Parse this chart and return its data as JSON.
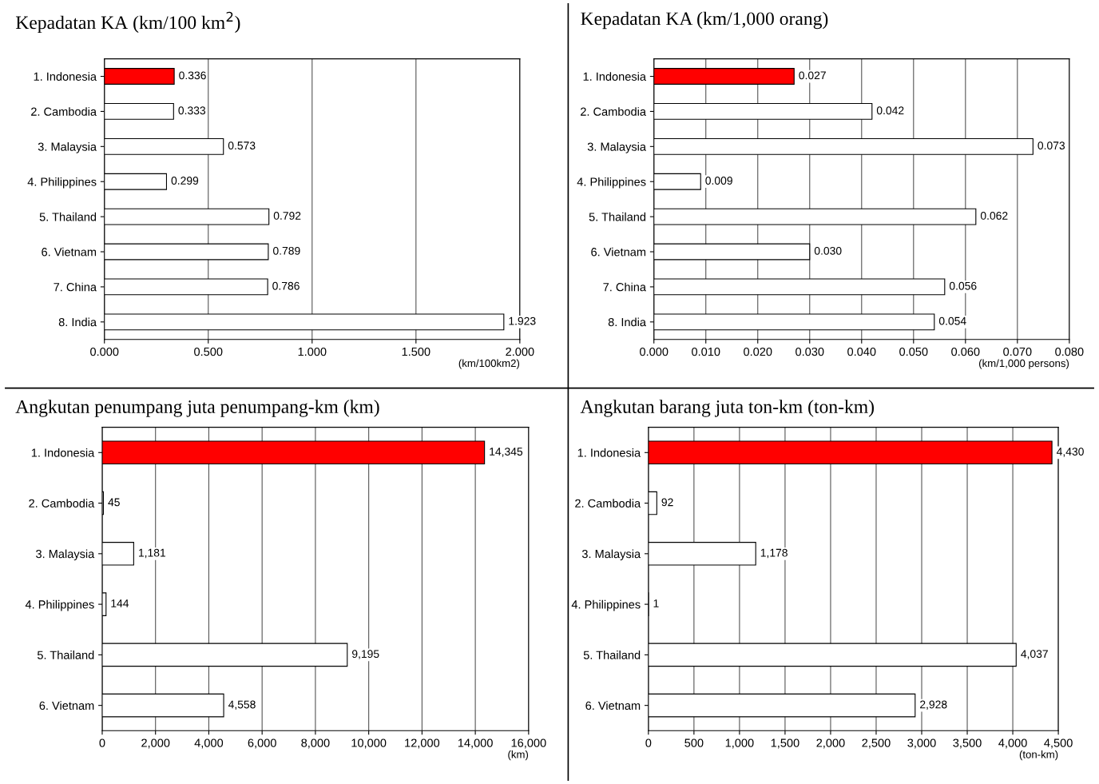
{
  "chart_data": [
    {
      "type": "bar",
      "orientation": "horizontal",
      "title": "Kepadatan KA (km/100 km$^{2}$)",
      "xlabel": "(km/100km2)",
      "categories": [
        "1. Indonesia",
        "2. Cambodia",
        "3. Malaysia",
        "4. Philippines",
        "5. Thailand",
        "6. Vietnam",
        "7. China",
        "8. India"
      ],
      "values": [
        0.336,
        0.333,
        0.573,
        0.299,
        0.792,
        0.789,
        0.786,
        1.923
      ],
      "value_labels": [
        "0.336",
        "0.333",
        "0.573",
        "0.299",
        "0.792",
        "0.789",
        "0.786",
        "1.923"
      ],
      "colors": [
        "#ff0000",
        "#ffffff",
        "#ffffff",
        "#ffffff",
        "#ffffff",
        "#ffffff",
        "#ffffff",
        "#ffffff"
      ],
      "xlim": [
        0,
        2
      ],
      "xticks": [
        {
          "value": 0,
          "label": "0.000"
        },
        {
          "value": 0.5,
          "label": "0.500"
        },
        {
          "value": 1,
          "label": "1.000"
        },
        {
          "value": 1.5,
          "label": "1.500"
        },
        {
          "value": 2,
          "label": "2.000"
        }
      ],
      "grid": "x"
    },
    {
      "type": "bar",
      "orientation": "horizontal",
      "title": "Kepadatan KA (km/1,000 orang)",
      "xlabel": "(km/1,000 persons)",
      "categories": [
        "1. Indonesia",
        "2. Cambodia",
        "3. Malaysia",
        "4. Philippines",
        "5. Thailand",
        "6. Vietnam",
        "7. China",
        "8. India"
      ],
      "values": [
        0.027,
        0.042,
        0.073,
        0.009,
        0.062,
        0.03,
        0.056,
        0.054
      ],
      "value_labels": [
        "0.027",
        "0.042",
        "0.073",
        "0.009",
        "0.062",
        "0.030",
        "0.056",
        "0.054"
      ],
      "colors": [
        "#ff0000",
        "#ffffff",
        "#ffffff",
        "#ffffff",
        "#ffffff",
        "#ffffff",
        "#ffffff",
        "#ffffff"
      ],
      "xlim": [
        0,
        0.08
      ],
      "xticks": [
        {
          "value": 0,
          "label": "0.000"
        },
        {
          "value": 0.01,
          "label": "0.010"
        },
        {
          "value": 0.02,
          "label": "0.020"
        },
        {
          "value": 0.03,
          "label": "0.030"
        },
        {
          "value": 0.04,
          "label": "0.040"
        },
        {
          "value": 0.05,
          "label": "0.050"
        },
        {
          "value": 0.06,
          "label": "0.060"
        },
        {
          "value": 0.07,
          "label": "0.070"
        },
        {
          "value": 0.08,
          "label": "0.080"
        }
      ],
      "grid": "x"
    },
    {
      "type": "bar",
      "orientation": "horizontal",
      "title": "Angkutan penumpang juta penumpang-km (km)",
      "xlabel": "(km)",
      "categories": [
        "1. Indonesia",
        "2. Cambodia",
        "3. Malaysia",
        "4. Philippines",
        "5. Thailand",
        "6. Vietnam"
      ],
      "values": [
        14345,
        45,
        1181,
        144,
        9195,
        4558
      ],
      "value_labels": [
        "14,345",
        "45",
        "1,181",
        "144",
        "9,195",
        "4,558"
      ],
      "colors": [
        "#ff0000",
        "#ffffff",
        "#ffffff",
        "#ffffff",
        "#ffffff",
        "#ffffff"
      ],
      "xlim": [
        0,
        16000
      ],
      "xticks": [
        0,
        {
          "value": 2000,
          "label": "2,000"
        },
        {
          "value": 4000,
          "label": "4,000"
        },
        {
          "value": 6000,
          "label": "6,000"
        },
        {
          "value": 8000,
          "label": "8,000"
        },
        {
          "value": 10000,
          "label": "10,000"
        },
        {
          "value": 12000,
          "label": "12,000"
        },
        {
          "value": 14000,
          "label": "14,000"
        },
        {
          "value": 16000,
          "label": "16,000"
        }
      ],
      "grid": "x"
    },
    {
      "type": "bar",
      "orientation": "horizontal",
      "title": "Angkutan barang juta ton-km (ton-km)",
      "xlabel": "(ton-km)",
      "categories": [
        "1. Indonesia",
        "2. Cambodia",
        "3. Malaysia",
        "4. Philippines",
        "5. Thailand",
        "6. Vietnam"
      ],
      "values": [
        4430,
        92,
        1178,
        1,
        4037,
        2928
      ],
      "value_labels": [
        "4,430",
        "92",
        "1,178",
        "1",
        "4,037",
        "2,928"
      ],
      "colors": [
        "#ff0000",
        "#ffffff",
        "#ffffff",
        "#ffffff",
        "#ffffff",
        "#ffffff"
      ],
      "xlim": [
        0,
        4500
      ],
      "xticks": [
        0,
        500,
        {
          "value": 1000,
          "label": "1,000"
        },
        {
          "value": 1500,
          "label": "1,500"
        },
        {
          "value": 2000,
          "label": "2,000"
        },
        {
          "value": 2500,
          "label": "2,500"
        },
        {
          "value": 3000,
          "label": "3,000"
        },
        {
          "value": 3500,
          "label": "3,500"
        },
        {
          "value": 4000,
          "label": "4,000"
        },
        {
          "value": 4500,
          "label": "4,500"
        }
      ],
      "grid": "x"
    }
  ]
}
